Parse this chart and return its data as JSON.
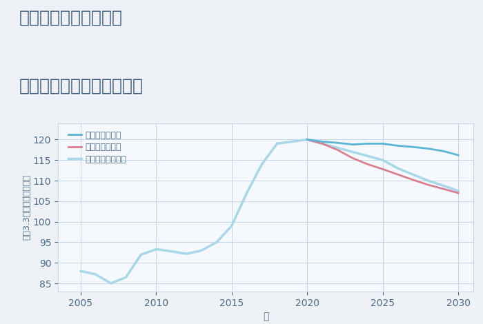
{
  "title_line1": "兵庫県姫路市駅前町の",
  "title_line2": "中古マンションの価格推移",
  "xlabel": "年",
  "ylabel": "坪（3.3㎡）単価（万円）",
  "xlim": [
    2003.5,
    2031
  ],
  "ylim": [
    83,
    124
  ],
  "yticks": [
    85,
    90,
    95,
    100,
    105,
    110,
    115,
    120
  ],
  "xticks": [
    2005,
    2010,
    2015,
    2020,
    2025,
    2030
  ],
  "background_color": "#eef2f7",
  "plot_bg_color": "#f5f8fc",
  "grid_color": "#c5d5e8",
  "legend_labels": [
    "グッドシナリオ",
    "バッドシナリオ",
    "ノーマルシナリオ"
  ],
  "good_color": "#5ab4d6",
  "bad_color": "#d98090",
  "normal_color": "#a8d8e8",
  "line_width": 2.0,
  "historical_years": [
    2005,
    2006,
    2007,
    2008,
    2009,
    2010,
    2011,
    2012,
    2013,
    2014,
    2015,
    2016,
    2017,
    2018,
    2019,
    2020
  ],
  "historical_values": [
    88,
    87.2,
    85,
    86.5,
    92,
    93.3,
    92.8,
    92.2,
    93,
    95,
    99,
    107,
    114,
    119,
    119.5,
    120
  ],
  "good_years": [
    2020,
    2021,
    2022,
    2023,
    2024,
    2025,
    2026,
    2027,
    2028,
    2029,
    2030
  ],
  "good_values": [
    120,
    119.5,
    119.2,
    118.8,
    119.0,
    119.0,
    118.5,
    118.2,
    117.8,
    117.2,
    116.2
  ],
  "bad_years": [
    2020,
    2021,
    2022,
    2023,
    2024,
    2025,
    2026,
    2027,
    2028,
    2029,
    2030
  ],
  "bad_values": [
    120,
    119.0,
    117.5,
    115.5,
    114.0,
    112.8,
    111.5,
    110.2,
    109.0,
    108.0,
    107.0
  ],
  "normal_years": [
    2020,
    2021,
    2022,
    2023,
    2024,
    2025,
    2026,
    2027,
    2028,
    2029,
    2030
  ],
  "normal_values": [
    120,
    119.0,
    118.0,
    117.0,
    116.0,
    115.0,
    113.0,
    111.5,
    110.0,
    108.8,
    107.5
  ],
  "title_color": "#3a5a7a",
  "axis_color": "#4a6a8a",
  "tick_color": "#4a6a8a",
  "title_fontsize": 18,
  "tick_fontsize": 10,
  "label_fontsize": 10
}
